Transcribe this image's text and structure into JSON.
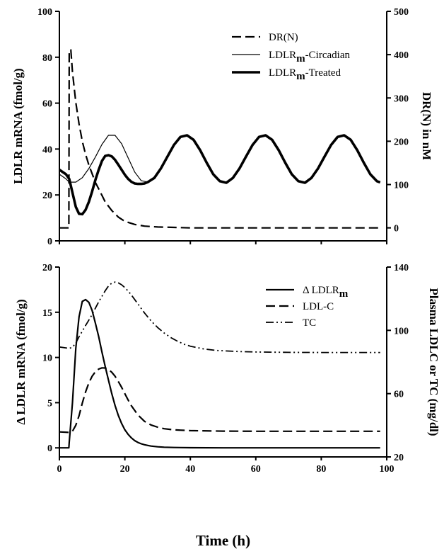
{
  "chart_data": [
    {
      "type": "line",
      "ylabel": "LDLR mRNA (fmol/g)",
      "ylabel2": "DR(N) in nM",
      "xlim": [
        0,
        100
      ],
      "ylim": [
        0,
        100
      ],
      "y2lim": [
        -30,
        500
      ],
      "yticks": [
        "0",
        "20",
        "40",
        "60",
        "80",
        "100"
      ],
      "y2ticks": [
        "0",
        "100",
        "200",
        "300",
        "400",
        "500"
      ],
      "legend_position": "top-right",
      "series": [
        {
          "name": "DR(N)",
          "label_main": "DR(N)",
          "label_sub": "",
          "label_tail": "",
          "axis": "right",
          "style": "dashed",
          "x": [
            0,
            2.9,
            3,
            3.5,
            4,
            5,
            6,
            7,
            8,
            9,
            10,
            11,
            12,
            13,
            14,
            16,
            18,
            20,
            23,
            26,
            30,
            35,
            40,
            50,
            60,
            70,
            80,
            90,
            98
          ],
          "y": [
            0,
            0,
            410,
            411,
            360,
            290,
            240,
            200,
            170,
            145,
            125,
            105,
            90,
            75,
            60,
            40,
            25,
            15,
            8,
            4,
            2,
            1,
            0,
            0,
            0,
            0,
            0,
            0,
            0
          ]
        },
        {
          "name": "LDLRm-Circadian",
          "label_main": "LDLR",
          "label_sub": "m",
          "label_tail": "-Circadian",
          "axis": "left",
          "style": "thin",
          "x": [
            0,
            2,
            3,
            5,
            7,
            9,
            11,
            13,
            15,
            17,
            19,
            21,
            23,
            25,
            27,
            29,
            31,
            33,
            35,
            37,
            39,
            41,
            43,
            45,
            47,
            49,
            51,
            53,
            55,
            57,
            59,
            61,
            63,
            65,
            67,
            69,
            71,
            73,
            75,
            77,
            79,
            81,
            83,
            85,
            87,
            89,
            91,
            93,
            95,
            97,
            98
          ],
          "y": [
            29,
            27,
            25.6,
            25.6,
            27.5,
            31.5,
            36.5,
            42,
            46,
            46,
            42.3,
            36.2,
            30,
            26.2,
            25.6,
            27.4,
            31.5,
            36.7,
            41.8,
            45.3,
            46,
            44,
            39.5,
            34,
            29,
            26,
            25.3,
            27.4,
            31.5,
            36.7,
            41.8,
            45.3,
            46,
            44,
            39.5,
            34,
            29,
            26,
            25.3,
            27.4,
            31.5,
            36.7,
            41.8,
            45.3,
            46,
            44,
            39.5,
            34,
            29,
            26,
            25.5
          ]
        },
        {
          "name": "LDLRm-Treated",
          "label_main": "LDLR",
          "label_sub": "m",
          "label_tail": "-Treated",
          "axis": "left",
          "style": "thick",
          "x": [
            0,
            2,
            3,
            4,
            5,
            6,
            7,
            8,
            9,
            10,
            11,
            12,
            13,
            14,
            15,
            16,
            17,
            18,
            19,
            20,
            21,
            22,
            23,
            24,
            25,
            26,
            27,
            29,
            31,
            33,
            35,
            37,
            39,
            41,
            43,
            45,
            47,
            49,
            51,
            53,
            55,
            57,
            59,
            61,
            63,
            65,
            67,
            69,
            71,
            73,
            75,
            77,
            79,
            81,
            83,
            85,
            87,
            89,
            91,
            93,
            95,
            97,
            98
          ],
          "y": [
            31,
            29,
            27,
            21,
            14.8,
            11.8,
            11.6,
            13.5,
            17,
            21.5,
            26.5,
            31,
            34.8,
            37,
            37.3,
            36.8,
            35.3,
            33.2,
            31,
            28.8,
            27,
            25.7,
            25,
            24.8,
            24.8,
            25,
            25.6,
            27.4,
            31.5,
            36.7,
            41.8,
            45.3,
            46,
            44,
            39.5,
            34,
            29,
            26,
            25.3,
            27.4,
            31.5,
            36.7,
            41.8,
            45.3,
            46,
            44,
            39.5,
            34,
            29,
            26,
            25.3,
            27.4,
            31.5,
            36.7,
            41.8,
            45.3,
            46,
            44,
            39.5,
            34,
            29,
            26,
            25.5
          ]
        }
      ]
    },
    {
      "type": "line",
      "xlabel": "Time (h)",
      "ylabel": "Δ LDLR mRNA (fmol/g)",
      "ylabel2": "Plasma LDLC or TC  (mg/dl)",
      "xlim": [
        0,
        100
      ],
      "ylim": [
        -1,
        20
      ],
      "y2lim": [
        20,
        140
      ],
      "xticks": [
        "0",
        "20",
        "40",
        "60",
        "80",
        "100"
      ],
      "yticks": [
        "0",
        "5",
        "10",
        "15",
        "20"
      ],
      "y2ticks": [
        "20",
        "60",
        "100",
        "140"
      ],
      "legend_position": "top-right",
      "series": [
        {
          "name": "Δ LDLRm",
          "label_main": "Δ LDLR",
          "label_sub": "m",
          "label_tail": "",
          "axis": "left",
          "style": "solid",
          "x": [
            0,
            2.9,
            3,
            4,
            5,
            6,
            7,
            8,
            9,
            10,
            11,
            12,
            13,
            14,
            15,
            16,
            17,
            18,
            19,
            20,
            21,
            22,
            23,
            24,
            25,
            26,
            27,
            28,
            30,
            32,
            35,
            40,
            50,
            60,
            70,
            80,
            90,
            98
          ],
          "y": [
            0,
            0,
            0.6,
            5,
            11,
            14.5,
            16.2,
            16.4,
            16.1,
            15.2,
            13.8,
            12.3,
            10.6,
            9,
            7.5,
            6,
            4.7,
            3.6,
            2.7,
            2,
            1.5,
            1.1,
            0.8,
            0.6,
            0.45,
            0.35,
            0.27,
            0.2,
            0.12,
            0.07,
            0.04,
            0.02,
            0,
            0,
            0,
            0,
            0,
            0
          ]
        },
        {
          "name": "LDL-C",
          "label_main": "LDL-C",
          "label_sub": "",
          "label_tail": "",
          "axis": "right",
          "style": "dashed",
          "x": [
            0,
            3,
            4,
            5,
            6,
            7,
            8,
            9,
            10,
            11,
            12,
            13,
            14,
            15,
            16,
            17,
            18,
            19,
            20,
            21,
            22,
            24,
            26,
            28,
            30,
            32,
            35,
            40,
            50,
            60,
            70,
            80,
            90,
            98
          ],
          "y": [
            35.8,
            35.5,
            36.2,
            40,
            46,
            54,
            61,
            66.8,
            71,
            73.8,
            75.5,
            76.3,
            76.2,
            75.3,
            73.5,
            71,
            67.7,
            64,
            60,
            56,
            52.3,
            46.5,
            42.5,
            40.2,
            38.8,
            37.8,
            37.1,
            36.6,
            36.3,
            36.2,
            36.2,
            36.2,
            36.2,
            36.2
          ]
        },
        {
          "name": "TC",
          "label_main": "TC",
          "label_sub": "",
          "label_tail": "",
          "axis": "right",
          "style": "dashdotdot",
          "x": [
            0,
            3,
            4,
            5,
            6,
            7,
            8,
            9,
            10,
            11,
            12,
            13,
            14,
            15,
            16,
            17,
            18,
            19,
            20,
            21,
            22,
            23,
            24,
            25,
            26,
            28,
            30,
            32,
            34,
            36,
            38,
            40,
            44,
            48,
            55,
            60,
            70,
            80,
            90,
            98
          ],
          "y": [
            89.5,
            88.6,
            89.3,
            92,
            96,
            99.5,
            103,
            106.5,
            110,
            114,
            118,
            121.5,
            125,
            128,
            129.9,
            130.5,
            130,
            128.8,
            127,
            124.8,
            122.3,
            119.5,
            116.7,
            113.8,
            111,
            106,
            101.8,
            98.3,
            95.5,
            93.2,
            91.3,
            90,
            88.3,
            87.3,
            86.6,
            86.3,
            86.1,
            86,
            86,
            86
          ]
        }
      ]
    }
  ]
}
